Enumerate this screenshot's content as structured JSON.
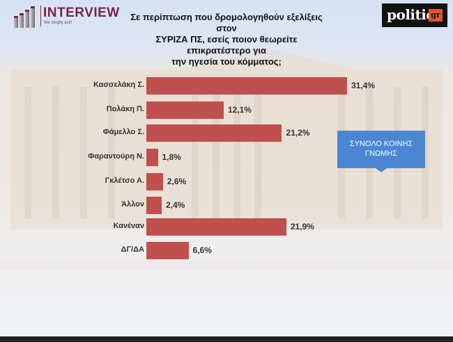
{
  "header": {
    "logo_name": "INTERVIEW",
    "logo_tagline": "We simply ask!",
    "title_lines": [
      "Σε περίπτωση που δρομολογηθούν εξελίξεις στον",
      "ΣΥΡΙΖΑ ΠΣ, εσείς ποιον θεωρείτε επικρατέστερο για",
      "την ηγεσία του κόμματος;"
    ],
    "politic_logo_main": "politic",
    "politic_logo_suffix": "gr"
  },
  "callout": {
    "line1": "ΣΥΝΟΛΟ ΚΟΙΝΗΣ",
    "line2": "ΓΝΩΜΗΣ",
    "color": "#4a86d2"
  },
  "chart_data": {
    "type": "bar",
    "orientation": "horizontal",
    "title": "Σε περίπτωση που δρομολογηθούν εξελίξεις στον ΣΥΡΙΖΑ ΠΣ, εσείς ποιον θεωρείτε επικρατέστερο για την ηγεσία του κόμματος;",
    "subtitle": "ΣΥΝΟΛΟ ΚΟΙΝΗΣ ΓΝΩΜΗΣ",
    "categories": [
      "Κασσελάκη Σ.",
      "Πολάκη Π.",
      "Φάμελλο Σ.",
      "Φαραντούρη Ν.",
      "Γκλέτσο Α.",
      "Άλλον",
      "Κανέναν",
      "ΔΓ/ΔΑ"
    ],
    "values": [
      31.4,
      12.1,
      21.2,
      1.8,
      2.6,
      2.4,
      21.9,
      6.6
    ],
    "value_labels": [
      "31,4%",
      "12,1%",
      "21,2%",
      "1,8%",
      "2,6%",
      "2,4%",
      "21,9%",
      "6,6%"
    ],
    "bar_color": "#c0504d",
    "xlabel": "",
    "ylabel": "",
    "grid": false,
    "legend": "none"
  }
}
